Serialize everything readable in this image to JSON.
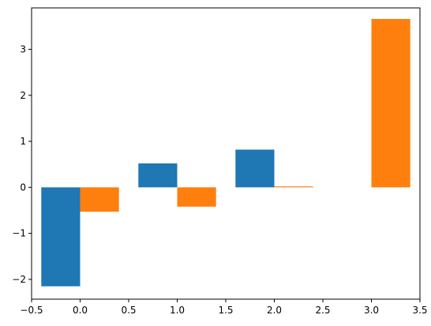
{
  "chart_data": {
    "type": "bar",
    "title": "",
    "xlabel": "",
    "ylabel": "",
    "xlim": [
      -0.5,
      3.5
    ],
    "ylim": [
      -2.43,
      3.9
    ],
    "grid": false,
    "bar_width": 0.4,
    "x_ticks": [
      -0.5,
      0.0,
      0.5,
      1.0,
      1.5,
      2.0,
      2.5,
      3.0,
      3.5
    ],
    "x_tick_labels": [
      "−0.5",
      "0.0",
      "0.5",
      "1.0",
      "1.5",
      "2.0",
      "2.5",
      "3.0",
      "3.5"
    ],
    "y_ticks": [
      -2,
      -1,
      0,
      1,
      2,
      3
    ],
    "y_tick_labels": [
      "−2",
      "−1",
      "0",
      "1",
      "2",
      "3"
    ],
    "series": [
      {
        "color": "#1f77b4",
        "x_left": [
          -0.4,
          0.6,
          1.6
        ],
        "values": [
          -2.15,
          0.52,
          0.82
        ]
      },
      {
        "color": "#ff7f0e",
        "x_left": [
          0.0,
          1.0,
          2.0,
          3.0
        ],
        "values": [
          -0.53,
          -0.42,
          0.02,
          3.66
        ]
      }
    ]
  }
}
